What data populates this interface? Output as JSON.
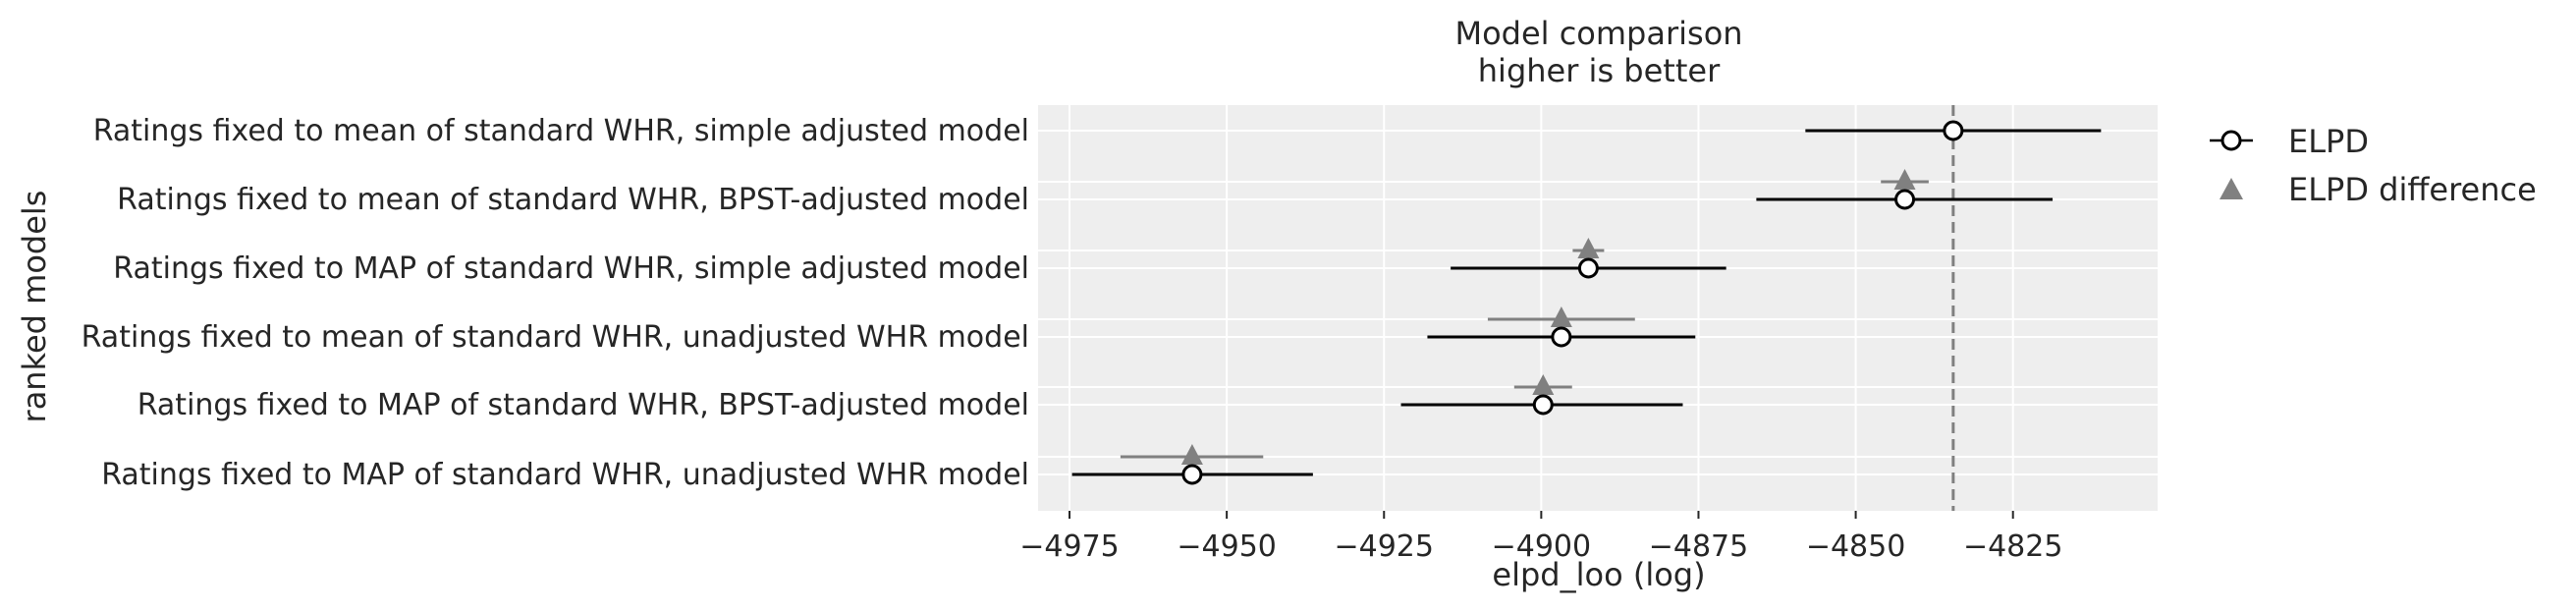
{
  "chart_data": {
    "type": "scatter",
    "title": "Model comparison",
    "subtitle": "higher is better",
    "xlabel": "elpd_loo (log)",
    "ylabel": "ranked models",
    "xlim": [
      -4980,
      -4802
    ],
    "xticks": [
      -4975,
      -4950,
      -4925,
      -4900,
      -4875,
      -4850,
      -4825
    ],
    "xtick_labels": [
      "−4975",
      "−4950",
      "−4925",
      "−4900",
      "−4875",
      "−4850",
      "−4825"
    ],
    "grid": true,
    "legend_position": "outside-right",
    "reference_line": -4834.5,
    "models": [
      {
        "label": "Ratings fixed to mean of standard WHR, simple adjusted model",
        "elpd": -4834.5,
        "elpd_low": -4858.0,
        "elpd_high": -4811.0,
        "diff": null,
        "diff_low": null,
        "diff_high": null
      },
      {
        "label": "Ratings fixed to mean of standard WHR, BPST-adjusted model",
        "elpd": -4842.2,
        "elpd_low": -4865.8,
        "elpd_high": -4818.7,
        "diff": -4842.2,
        "diff_low": -4846.0,
        "diff_high": -4838.4
      },
      {
        "label": "Ratings fixed to MAP of standard WHR, simple adjusted model",
        "elpd": -4892.5,
        "elpd_low": -4914.4,
        "elpd_high": -4870.6,
        "diff": -4892.5,
        "diff_low": -4895.0,
        "diff_high": -4890.0
      },
      {
        "label": "Ratings fixed to mean of standard WHR, unadjusted WHR model",
        "elpd": -4896.8,
        "elpd_low": -4918.1,
        "elpd_high": -4875.5,
        "diff": -4896.8,
        "diff_low": -4908.5,
        "diff_high": -4885.1
      },
      {
        "label": "Ratings fixed to MAP of standard WHR, BPST-adjusted model",
        "elpd": -4899.7,
        "elpd_low": -4922.3,
        "elpd_high": -4877.5,
        "diff": -4899.7,
        "diff_low": -4904.3,
        "diff_high": -4895.1
      },
      {
        "label": "Ratings fixed to MAP of standard WHR, unadjusted WHR model",
        "elpd": -4955.5,
        "elpd_low": -4974.6,
        "elpd_high": -4936.3,
        "diff": -4955.5,
        "diff_low": -4966.9,
        "diff_high": -4944.2
      }
    ],
    "series": [
      {
        "name": "ELPD",
        "marker": "open-circle",
        "color": "#000000"
      },
      {
        "name": "ELPD difference",
        "marker": "triangle",
        "color": "#808080"
      }
    ],
    "colors": {
      "plot_background": "#eeeeee",
      "grid": "#ffffff",
      "elpd": "#000000",
      "diff": "#808080",
      "reference_line": "#808080"
    }
  }
}
